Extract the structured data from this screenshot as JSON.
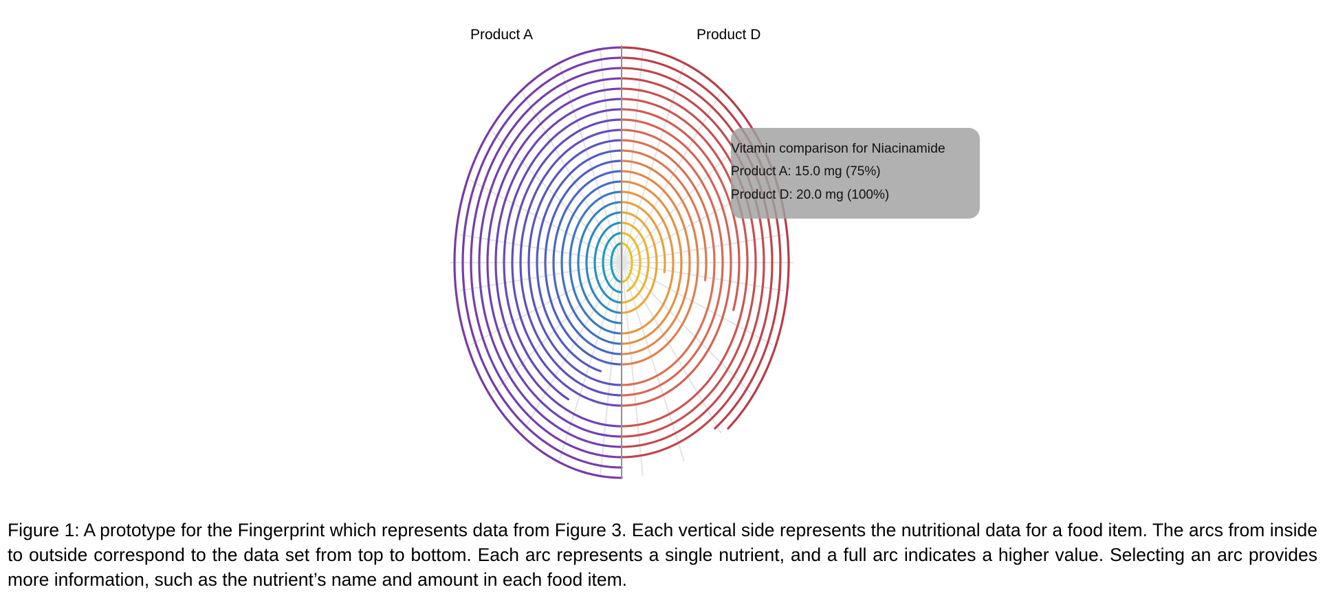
{
  "figure": {
    "side_labels": {
      "left": "Product A",
      "right": "Product D"
    },
    "tooltip": {
      "title": "Vitamin comparison for Niacinamide",
      "line_a": "Product A: 15.0 mg (75%)",
      "line_d": "Product D: 20.0 mg (100%)"
    },
    "caption": "Figure 1: A prototype for the Fingerprint which represents data from Figure 3. Each vertical side represents the nutritional data for a food item. The arcs from inside to outside correspond to the data set from top to bottom. Each arc represents a single nutrient, and a full arc indicates a higher value. Selecting an arc provides more information, such as the nutrient’s name and amount in each food item."
  },
  "chart_data": {
    "type": "fingerprint",
    "series": [
      {
        "name": "Product A",
        "side": "left",
        "arc_fraction": [
          1,
          1,
          1,
          1,
          1,
          1,
          1,
          1,
          1,
          0.92,
          1,
          1,
          1,
          0.85,
          1,
          1,
          1,
          1,
          1,
          1
        ],
        "colors": [
          "#17a1bb",
          "#1f99bd",
          "#2690bf",
          "#2e87c0",
          "#3680c1",
          "#3c78c2",
          "#426fc2",
          "#4867c2",
          "#4e5fc1",
          "#545ac0",
          "#5a55be",
          "#5f50bc",
          "#634cba",
          "#6748b7",
          "#6b45b4",
          "#6e42b2",
          "#7140b0",
          "#733ead",
          "#753cab",
          "#773aa9"
        ]
      },
      {
        "name": "Product D",
        "side": "right",
        "arc_fraction": [
          1,
          0.9,
          1,
          1,
          0.55,
          1,
          1,
          1,
          1,
          0.55,
          1,
          1,
          1,
          0.6,
          1,
          1,
          1,
          1,
          0.8,
          0.78
        ],
        "colors": [
          "#e8c325",
          "#e9bc2c",
          "#e8b332",
          "#e7aa38",
          "#e6a13d",
          "#e59842",
          "#e39046",
          "#e1884a",
          "#de804e",
          "#db7950",
          "#d87152",
          "#d56a53",
          "#d26354",
          "#ce5c54",
          "#ca5553",
          "#c64f51",
          "#c24a4f",
          "#be454d",
          "#ba404b",
          "#b73c48"
        ]
      }
    ],
    "grid": true
  }
}
